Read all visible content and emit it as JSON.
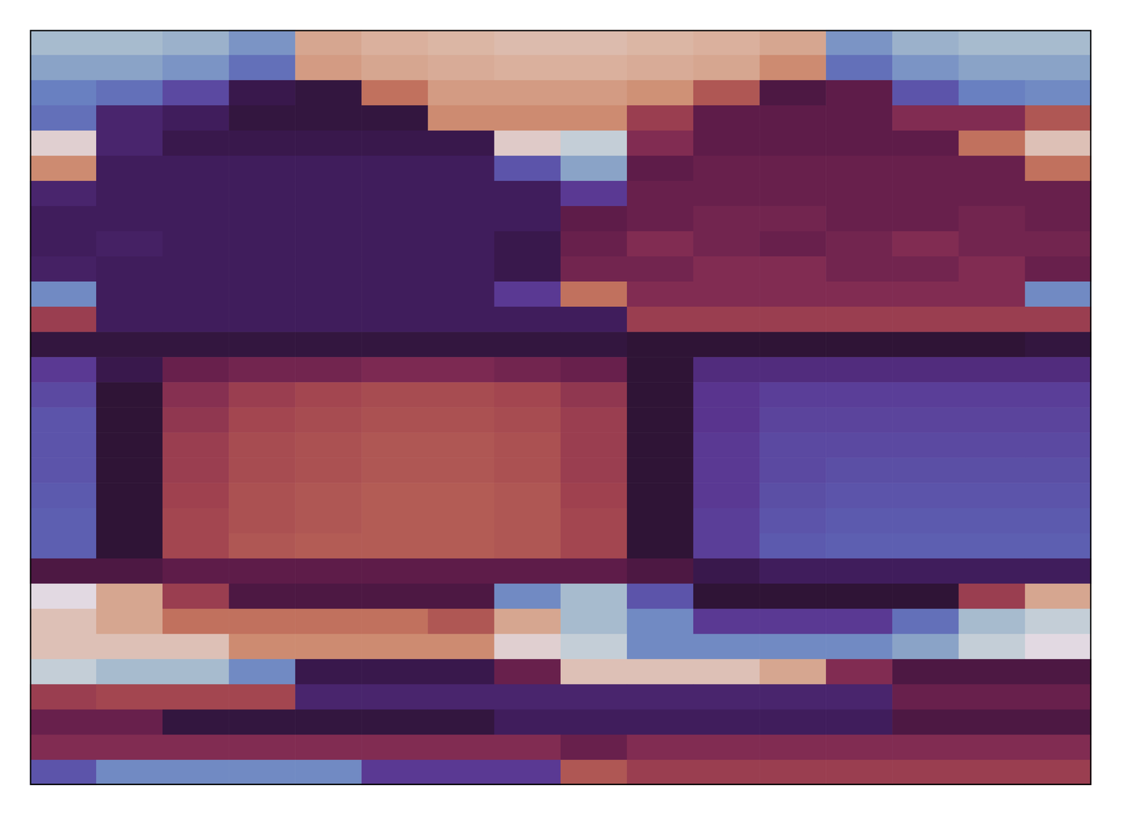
{
  "chart_data": {
    "type": "heatmap",
    "tick_labels": false,
    "clim": [
      0,
      1
    ],
    "values": [
      [
        0.1,
        0.1,
        0.12,
        0.18,
        0.9,
        0.92,
        0.93,
        0.94,
        0.94,
        0.93,
        0.92,
        0.9,
        0.18,
        0.12,
        0.1,
        0.1
      ],
      [
        0.15,
        0.15,
        0.18,
        0.25,
        0.88,
        0.9,
        0.91,
        0.92,
        0.92,
        0.91,
        0.9,
        0.85,
        0.25,
        0.18,
        0.15,
        0.15
      ],
      [
        0.22,
        0.25,
        0.32,
        0.45,
        0.48,
        0.8,
        0.88,
        0.88,
        0.88,
        0.86,
        0.75,
        0.55,
        0.58,
        0.3,
        0.22,
        0.2
      ],
      [
        0.25,
        0.4,
        0.42,
        0.48,
        0.48,
        0.48,
        0.85,
        0.85,
        0.85,
        0.7,
        0.58,
        0.58,
        0.58,
        0.65,
        0.65,
        0.75
      ],
      [
        0.98,
        0.4,
        0.45,
        0.45,
        0.45,
        0.45,
        0.45,
        0.97,
        0.05,
        0.65,
        0.58,
        0.58,
        0.58,
        0.58,
        0.8,
        0.95
      ],
      [
        0.85,
        0.42,
        0.42,
        0.42,
        0.42,
        0.42,
        0.42,
        0.3,
        0.15,
        0.58,
        0.6,
        0.6,
        0.6,
        0.6,
        0.6,
        0.8
      ],
      [
        0.4,
        0.42,
        0.42,
        0.42,
        0.42,
        0.42,
        0.42,
        0.42,
        0.35,
        0.6,
        0.6,
        0.6,
        0.6,
        0.6,
        0.6,
        0.6
      ],
      [
        0.42,
        0.42,
        0.42,
        0.42,
        0.42,
        0.42,
        0.42,
        0.42,
        0.58,
        0.6,
        0.62,
        0.62,
        0.6,
        0.6,
        0.62,
        0.6
      ],
      [
        0.42,
        0.41,
        0.42,
        0.42,
        0.42,
        0.42,
        0.42,
        0.45,
        0.6,
        0.65,
        0.62,
        0.6,
        0.62,
        0.65,
        0.62,
        0.62
      ],
      [
        0.41,
        0.42,
        0.42,
        0.42,
        0.42,
        0.42,
        0.42,
        0.45,
        0.62,
        0.62,
        0.65,
        0.65,
        0.62,
        0.62,
        0.65,
        0.6
      ],
      [
        0.2,
        0.42,
        0.42,
        0.42,
        0.42,
        0.42,
        0.42,
        0.35,
        0.8,
        0.65,
        0.65,
        0.65,
        0.65,
        0.65,
        0.65,
        0.2
      ],
      [
        0.7,
        0.42,
        0.42,
        0.42,
        0.42,
        0.42,
        0.42,
        0.42,
        0.42,
        0.7,
        0.7,
        0.7,
        0.7,
        0.7,
        0.7,
        0.7
      ],
      [
        0.48,
        0.48,
        0.48,
        0.48,
        0.48,
        0.48,
        0.48,
        0.48,
        0.48,
        0.5,
        0.5,
        0.5,
        0.5,
        0.5,
        0.5,
        0.48
      ],
      [
        0.35,
        0.45,
        0.6,
        0.62,
        0.62,
        0.64,
        0.64,
        0.62,
        0.6,
        0.5,
        0.38,
        0.38,
        0.38,
        0.38,
        0.38,
        0.38
      ],
      [
        0.32,
        0.5,
        0.66,
        0.7,
        0.72,
        0.73,
        0.73,
        0.72,
        0.68,
        0.5,
        0.36,
        0.34,
        0.34,
        0.34,
        0.34,
        0.34
      ],
      [
        0.3,
        0.5,
        0.68,
        0.72,
        0.73,
        0.74,
        0.74,
        0.73,
        0.7,
        0.5,
        0.36,
        0.33,
        0.33,
        0.33,
        0.33,
        0.33
      ],
      [
        0.3,
        0.5,
        0.7,
        0.73,
        0.74,
        0.75,
        0.75,
        0.74,
        0.7,
        0.5,
        0.35,
        0.32,
        0.32,
        0.32,
        0.32,
        0.32
      ],
      [
        0.3,
        0.5,
        0.7,
        0.73,
        0.74,
        0.75,
        0.75,
        0.74,
        0.7,
        0.5,
        0.35,
        0.32,
        0.31,
        0.31,
        0.31,
        0.31
      ],
      [
        0.29,
        0.5,
        0.71,
        0.74,
        0.75,
        0.76,
        0.76,
        0.75,
        0.71,
        0.5,
        0.35,
        0.31,
        0.3,
        0.3,
        0.3,
        0.3
      ],
      [
        0.28,
        0.5,
        0.72,
        0.74,
        0.75,
        0.76,
        0.76,
        0.75,
        0.72,
        0.5,
        0.34,
        0.3,
        0.29,
        0.29,
        0.29,
        0.29
      ],
      [
        0.28,
        0.5,
        0.72,
        0.75,
        0.76,
        0.76,
        0.76,
        0.75,
        0.72,
        0.5,
        0.34,
        0.29,
        0.28,
        0.28,
        0.28,
        0.28
      ],
      [
        0.55,
        0.55,
        0.58,
        0.58,
        0.58,
        0.58,
        0.58,
        0.58,
        0.58,
        0.55,
        0.45,
        0.42,
        0.42,
        0.42,
        0.42,
        0.42
      ],
      [
        0.0,
        0.9,
        0.7,
        0.55,
        0.55,
        0.55,
        0.55,
        0.2,
        0.1,
        0.3,
        0.5,
        0.5,
        0.5,
        0.5,
        0.7,
        0.9
      ],
      [
        0.95,
        0.9,
        0.8,
        0.8,
        0.8,
        0.8,
        0.75,
        0.9,
        0.1,
        0.2,
        0.35,
        0.35,
        0.35,
        0.25,
        0.1,
        0.05
      ],
      [
        0.95,
        0.95,
        0.95,
        0.85,
        0.85,
        0.85,
        0.85,
        0.98,
        0.05,
        0.2,
        0.2,
        0.2,
        0.2,
        0.15,
        0.05,
        0.0
      ],
      [
        0.05,
        0.1,
        0.1,
        0.2,
        0.45,
        0.45,
        0.45,
        0.6,
        0.95,
        0.95,
        0.95,
        0.9,
        0.65,
        0.55,
        0.55,
        0.55
      ],
      [
        0.7,
        0.72,
        0.72,
        0.72,
        0.4,
        0.4,
        0.4,
        0.4,
        0.4,
        0.4,
        0.4,
        0.4,
        0.4,
        0.6,
        0.6,
        0.6
      ],
      [
        0.6,
        0.6,
        0.48,
        0.48,
        0.48,
        0.48,
        0.48,
        0.42,
        0.42,
        0.42,
        0.42,
        0.42,
        0.42,
        0.55,
        0.55,
        0.55
      ],
      [
        0.65,
        0.65,
        0.65,
        0.65,
        0.65,
        0.65,
        0.65,
        0.65,
        0.6,
        0.65,
        0.65,
        0.65,
        0.65,
        0.65,
        0.65,
        0.65
      ],
      [
        0.3,
        0.2,
        0.2,
        0.2,
        0.2,
        0.35,
        0.35,
        0.35,
        0.75,
        0.7,
        0.7,
        0.7,
        0.7,
        0.7,
        0.7,
        0.7
      ]
    ]
  }
}
